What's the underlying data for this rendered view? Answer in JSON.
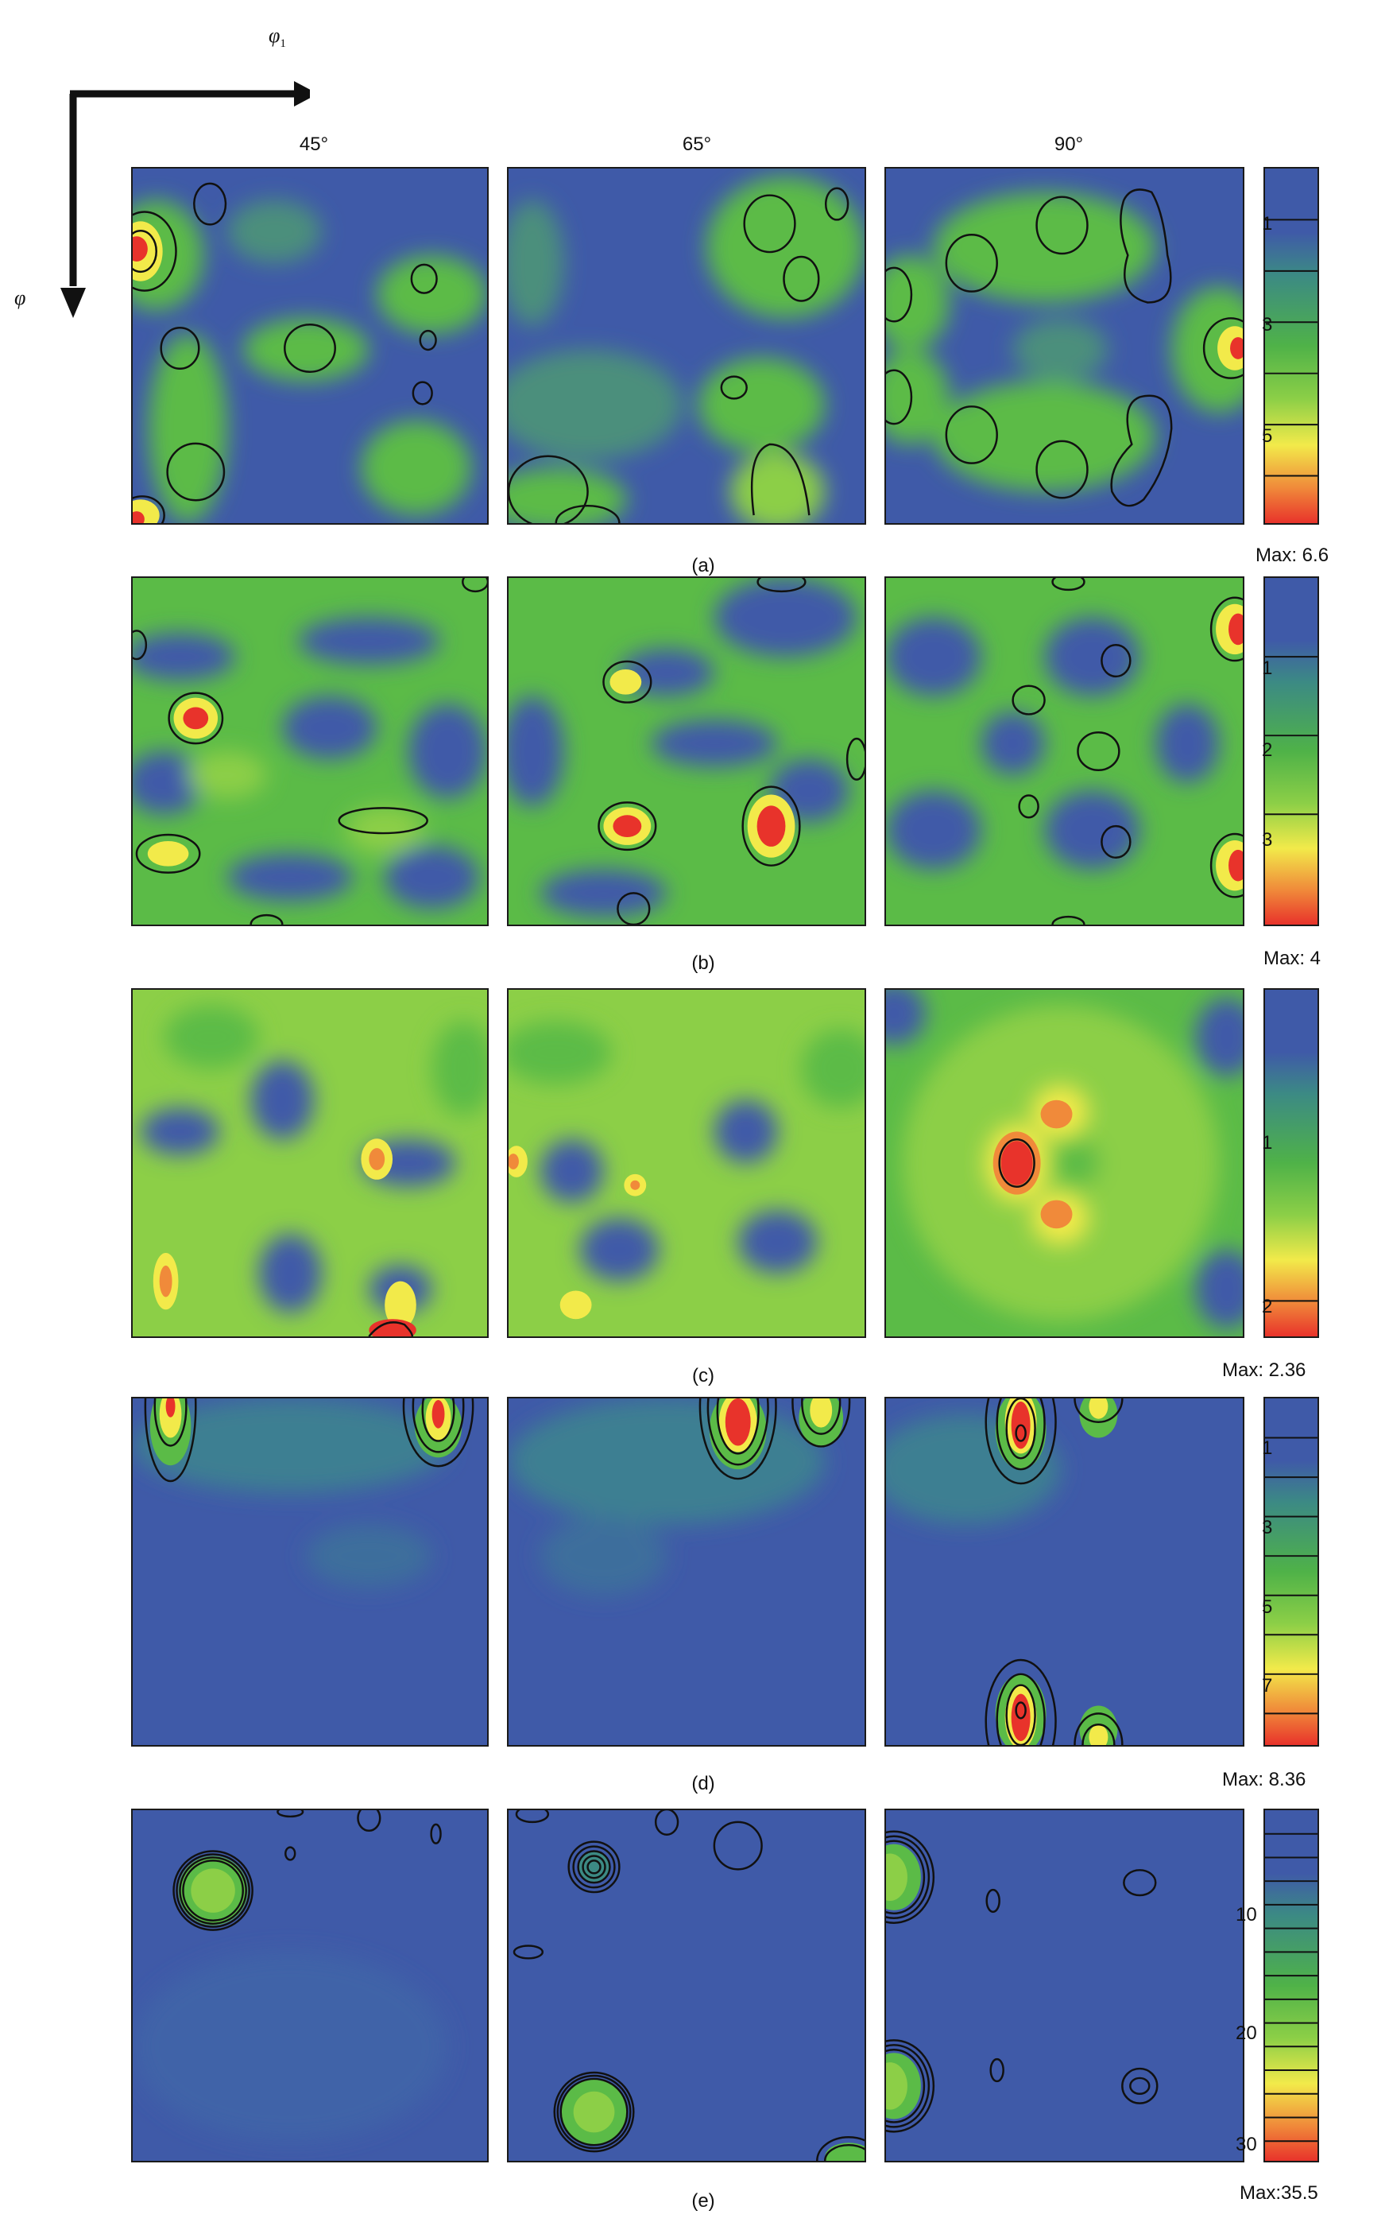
{
  "axes": {
    "horizontal_symbol": "φ",
    "horizontal_subscript": "1",
    "vertical_symbol": "φ"
  },
  "columns": [
    "45°",
    "65°",
    "90°"
  ],
  "colors": {
    "low": "#3f5aa8",
    "mid": "#5bbb47",
    "high_yellow": "#f2ea4a",
    "high_red": "#e8332b",
    "contour": "#111111"
  },
  "figures": [
    {
      "label": "(a)",
      "max": "Max: 6.6",
      "ticks": [
        "1",
        "3",
        "5"
      ]
    },
    {
      "label": "(b)",
      "max": "Max: 4",
      "ticks": [
        "1",
        "2",
        "3"
      ]
    },
    {
      "label": "(c)",
      "max": "Max: 2.36",
      "ticks": [
        "1",
        "2"
      ]
    },
    {
      "label": "(d)",
      "max": "Max: 8.36",
      "ticks": [
        "1",
        "3",
        "5",
        "7"
      ]
    },
    {
      "label": "(e)",
      "max": "Max:35.5",
      "ticks": [
        "10",
        "20",
        "30"
      ]
    }
  ]
}
